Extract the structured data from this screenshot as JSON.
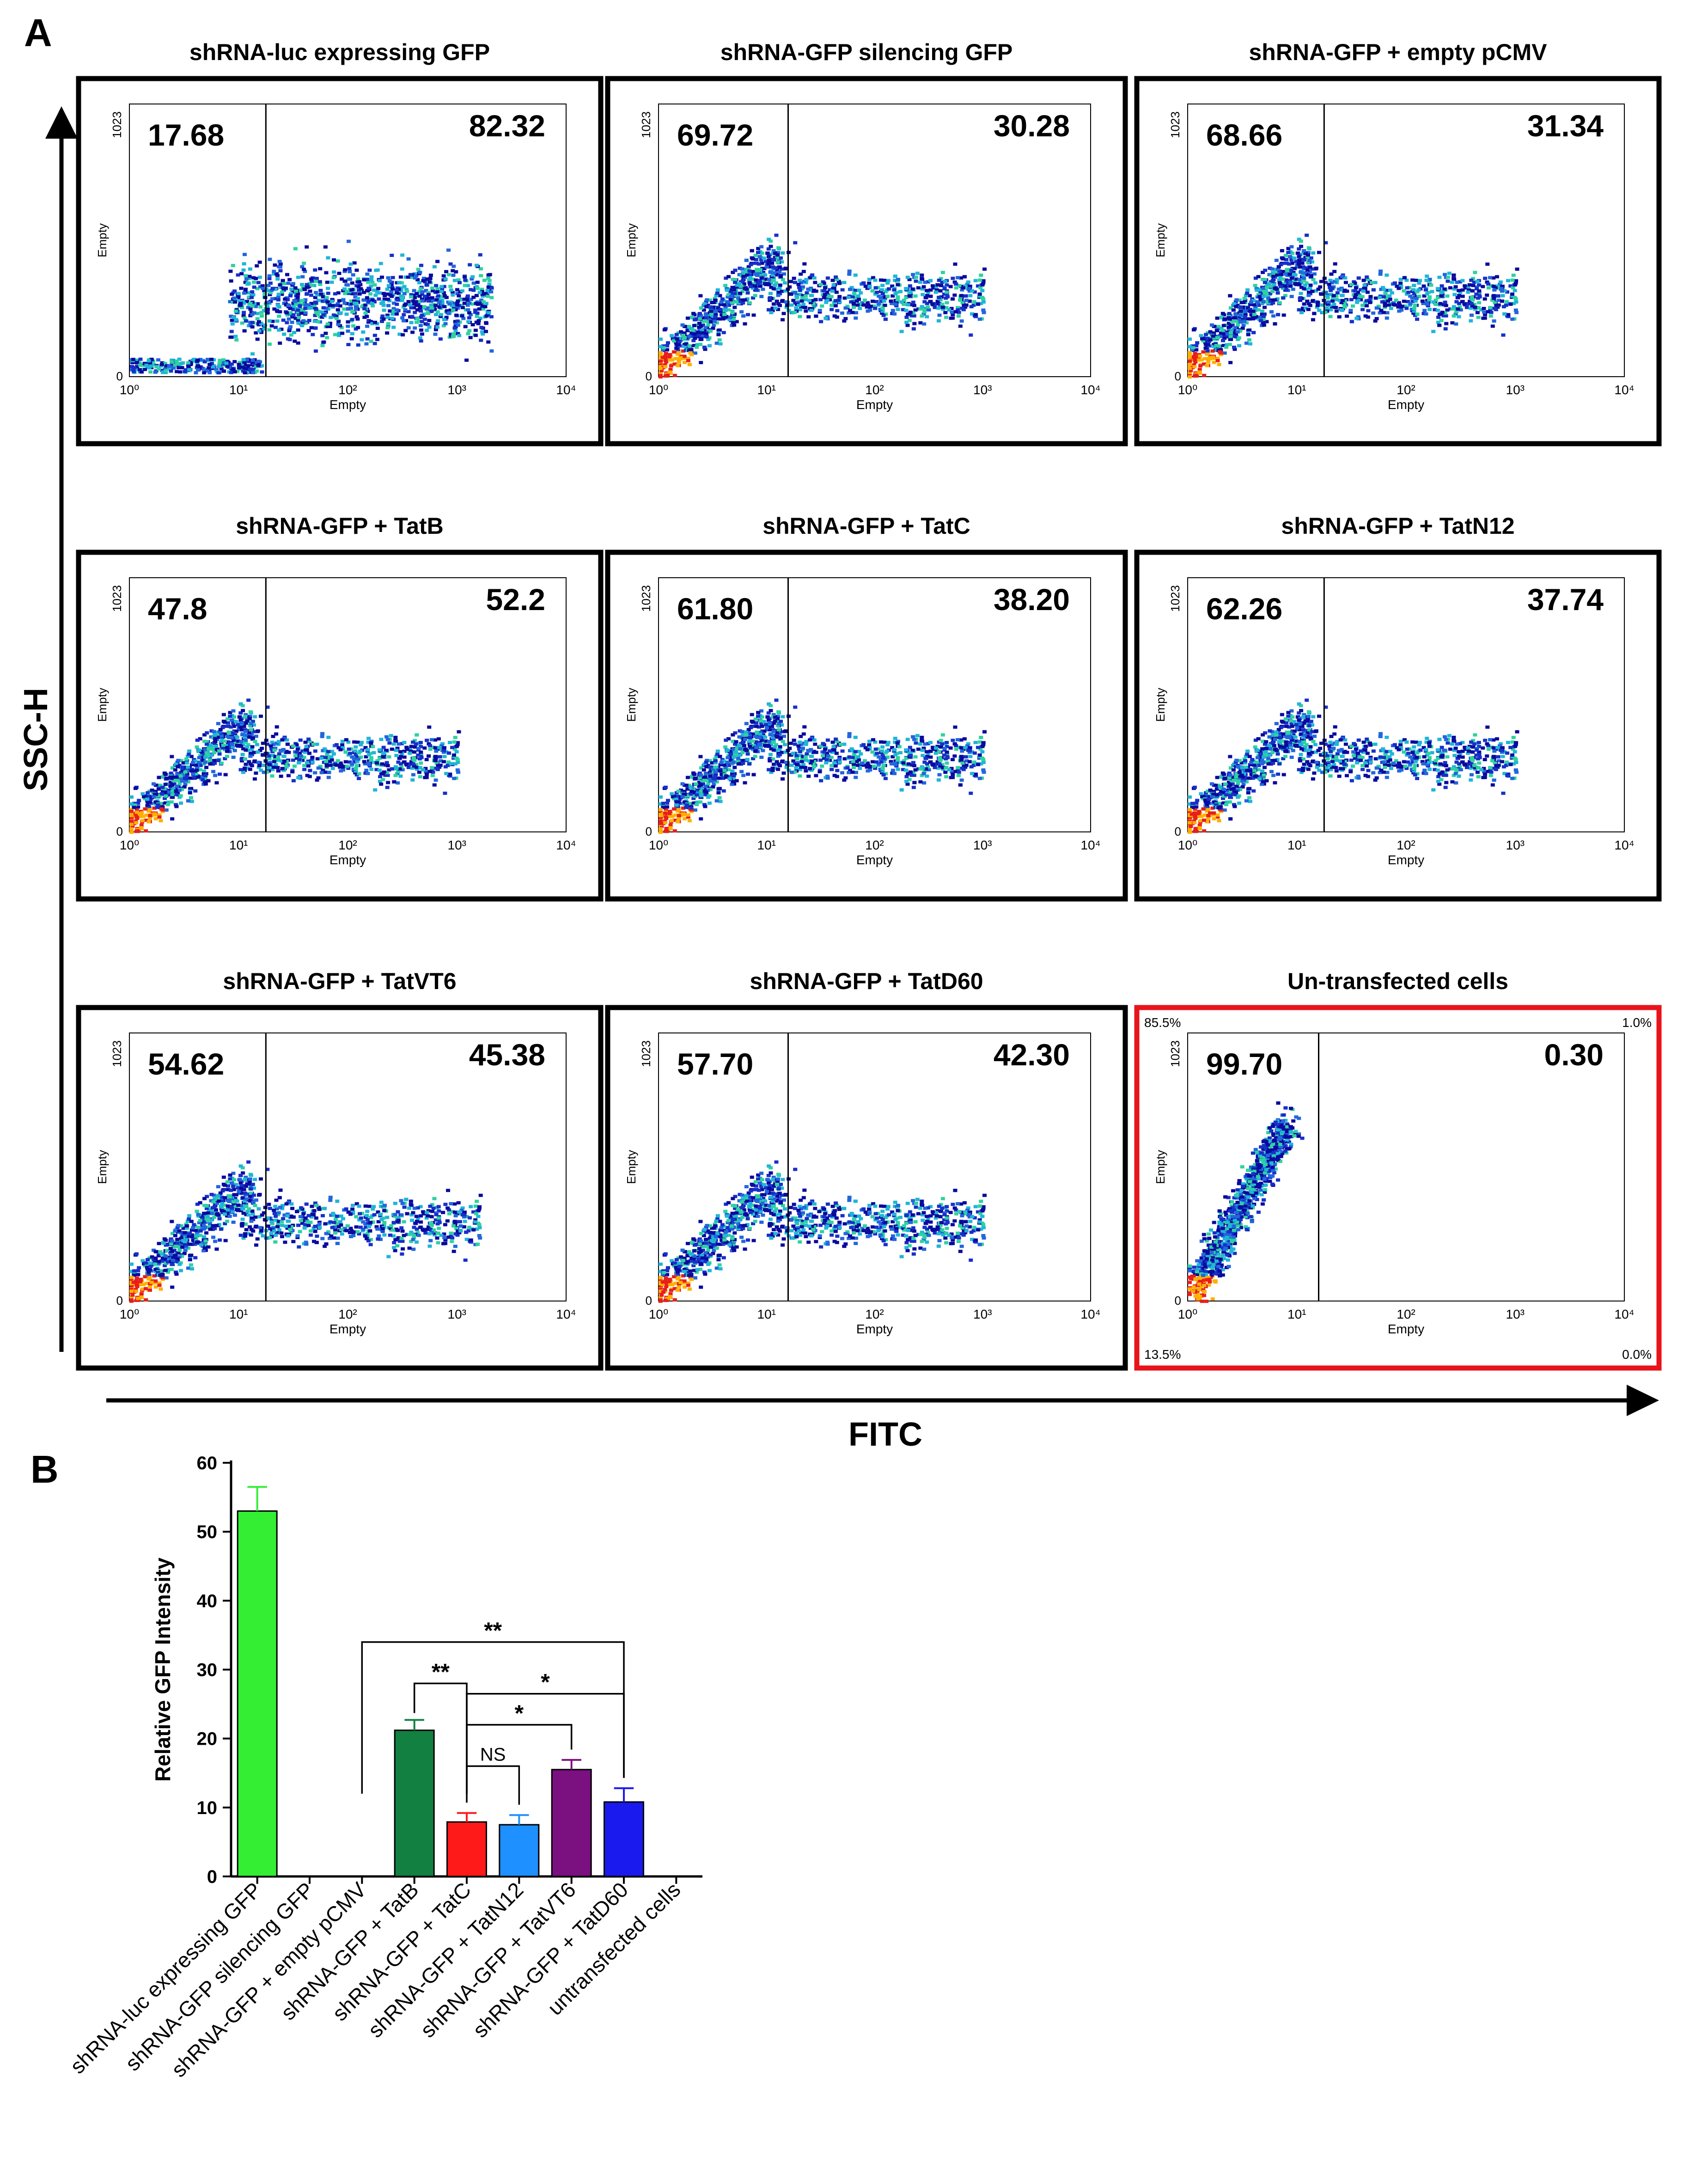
{
  "panel_labels": {
    "a": "A",
    "b": "B"
  },
  "axes_titles": {
    "y": "SSC-H",
    "x": "FITC"
  },
  "flow": {
    "axis_label": "Empty",
    "y_ticks": [
      "1023",
      "0"
    ],
    "x_ticks": [
      "10⁰",
      "10¹",
      "10²",
      "10³",
      "10⁴"
    ],
    "panels": [
      {
        "title": "shRNA-luc expressing GFP",
        "left": "17.68",
        "right": "82.32",
        "gate_decades": 1.25,
        "pattern": "luc",
        "highlight": false
      },
      {
        "title": "shRNA-GFP silencing GFP",
        "left": "69.72",
        "right": "30.28",
        "gate_decades": 1.2,
        "pattern": "silence",
        "highlight": false
      },
      {
        "title": "shRNA-GFP + empty pCMV",
        "left": "68.66",
        "right": "31.34",
        "gate_decades": 1.25,
        "pattern": "silence",
        "highlight": false
      },
      {
        "title": "shRNA-GFP + TatB",
        "left": "47.8",
        "right": "52.2",
        "gate_decades": 1.25,
        "pattern": "mid",
        "highlight": false
      },
      {
        "title": "shRNA-GFP + TatC",
        "left": "61.80",
        "right": "38.20",
        "gate_decades": 1.2,
        "pattern": "mid",
        "highlight": false
      },
      {
        "title": "shRNA-GFP + TatN12",
        "left": "62.26",
        "right": "37.74",
        "gate_decades": 1.25,
        "pattern": "mid",
        "highlight": false
      },
      {
        "title": "shRNA-GFP + TatVT6",
        "left": "54.62",
        "right": "45.38",
        "gate_decades": 1.25,
        "pattern": "vt6",
        "highlight": false
      },
      {
        "title": "shRNA-GFP + TatD60",
        "left": "57.70",
        "right": "42.30",
        "gate_decades": 1.2,
        "pattern": "mid",
        "highlight": false
      },
      {
        "title": "Un-transfected cells",
        "left": "99.70",
        "right": "0.30",
        "gate_decades": 1.2,
        "pattern": "untrans",
        "highlight": true,
        "corners": {
          "tl": "85.5%",
          "tr": "1.0%",
          "bl": "13.5%",
          "br": "0.0%"
        }
      }
    ]
  },
  "chart_data": {
    "type": "bar",
    "ylabel": "Relative GFP Intensity",
    "xlabel": "",
    "ylim": [
      0,
      60
    ],
    "yticks": [
      0,
      10,
      20,
      30,
      40,
      50,
      60
    ],
    "grid": false,
    "categories": [
      "shRNA-luc expressing GFP",
      "shRNA-GFP silencing GFP",
      "shRNA-GFP + empty pCMV",
      "shRNA-GFP + TatB",
      "shRNA-GFP + TatC",
      "shRNA-GFP + TatN12",
      "shRNA-GFP + TatVT6",
      "shRNA-GFP + TatD60",
      "untransfected cells"
    ],
    "values": [
      53,
      0,
      0,
      21.2,
      7.9,
      7.5,
      15.5,
      10.8,
      0
    ],
    "errors": [
      3.5,
      0,
      0,
      1.5,
      1.3,
      1.4,
      1.4,
      2.0,
      0
    ],
    "colors": [
      "#33ee33",
      null,
      null,
      "#118040",
      "#ff1a1a",
      "#1e90ff",
      "#7b1080",
      "#1a1aee",
      null
    ],
    "significance": [
      {
        "from": 2,
        "to": 7,
        "y": 34,
        "label": "**"
      },
      {
        "from": 3,
        "to": 4,
        "y": 28,
        "label": "**"
      },
      {
        "from": 4,
        "to": 7,
        "y": 26.5,
        "label": "*"
      },
      {
        "from": 4,
        "to": 6,
        "y": 22,
        "label": "*"
      },
      {
        "from": 4,
        "to": 5,
        "y": 16,
        "label": "NS"
      }
    ]
  }
}
